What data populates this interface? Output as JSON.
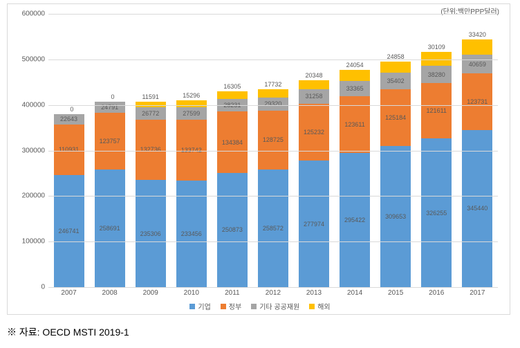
{
  "chart": {
    "type": "stacked-bar",
    "unit_label": "(단위:백만PPP달러)",
    "ylim": [
      0,
      600000
    ],
    "ytick_step": 100000,
    "yticks": [
      0,
      100000,
      200000,
      300000,
      400000,
      500000,
      600000
    ],
    "background_color": "#ffffff",
    "grid_color": "#d9d9d9",
    "label_color": "#595959",
    "categories": [
      "2007",
      "2008",
      "2009",
      "2010",
      "2011",
      "2012",
      "2013",
      "2014",
      "2015",
      "2016",
      "2017"
    ],
    "series": [
      {
        "key": "corp",
        "label": "기업",
        "color": "#5b9bd5"
      },
      {
        "key": "gov",
        "label": "정부",
        "color": "#ed7d31"
      },
      {
        "key": "other",
        "label": "기타 공공재원",
        "color": "#a5a5a5"
      },
      {
        "key": "overseas",
        "label": "해외",
        "color": "#ffc000"
      }
    ],
    "data": [
      {
        "corp": 246741,
        "gov": 110931,
        "other": 22643,
        "overseas": 0
      },
      {
        "corp": 258691,
        "gov": 123757,
        "other": 24791,
        "overseas": 0
      },
      {
        "corp": 235306,
        "gov": 132736,
        "other": 26772,
        "overseas": 11591
      },
      {
        "corp": 233456,
        "gov": 133742,
        "other": 27599,
        "overseas": 15296
      },
      {
        "corp": 250873,
        "gov": 134384,
        "other": 28231,
        "overseas": 16305
      },
      {
        "corp": 258572,
        "gov": 128725,
        "other": 29320,
        "overseas": 17732
      },
      {
        "corp": 277974,
        "gov": 125232,
        "other": 31258,
        "overseas": 20348
      },
      {
        "corp": 295422,
        "gov": 123611,
        "other": 33365,
        "overseas": 24054
      },
      {
        "corp": 309653,
        "gov": 125184,
        "other": 35402,
        "overseas": 24858
      },
      {
        "corp": 326255,
        "gov": 121611,
        "other": 38280,
        "overseas": 30109
      },
      {
        "corp": 345440,
        "gov": 123731,
        "other": 40659,
        "overseas": 33420
      }
    ],
    "label_fontsize": 9,
    "axis_fontsize": 10
  },
  "source": "※ 자료: OECD MSTI 2019-1"
}
